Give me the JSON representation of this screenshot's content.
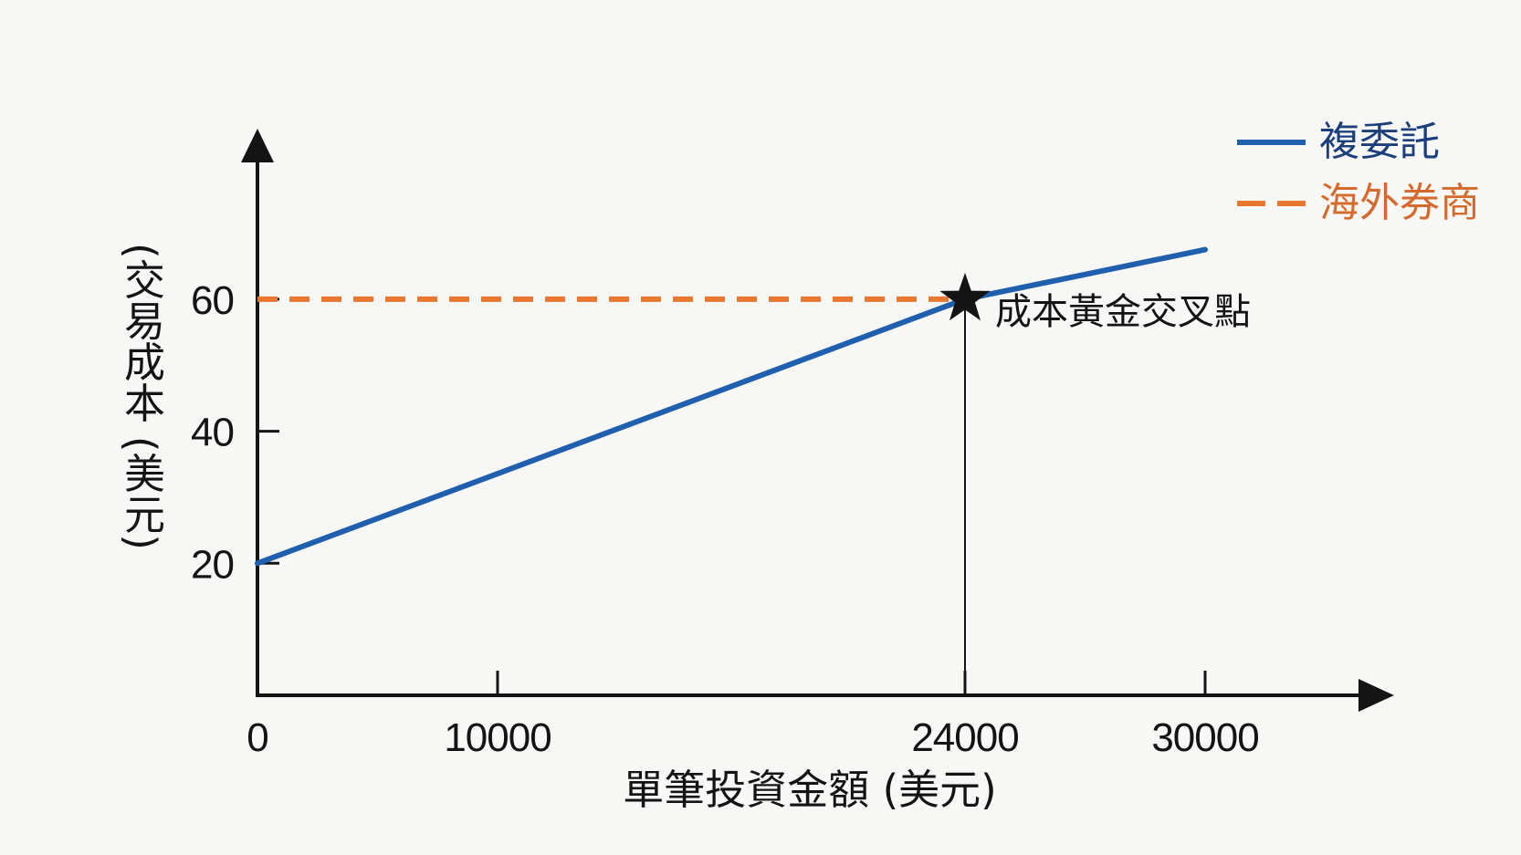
{
  "chart_data": {
    "type": "line",
    "xlabel": "單筆投資金額 (美元)",
    "ylabel": "(交易成本 (美元)",
    "x_ticks": [
      0,
      10000,
      24000,
      30000
    ],
    "y_ticks": [
      20,
      40,
      60
    ],
    "ylim": [
      0,
      85
    ],
    "grid": false,
    "legend": {
      "position": "top-right"
    },
    "series": [
      {
        "name": "複委託",
        "line_style": "solid",
        "color": "#1f5fae",
        "label_color": "#1c3f7c",
        "points": [
          [
            0,
            20
          ],
          [
            24000,
            60
          ],
          [
            30000,
            67.5
          ]
        ]
      },
      {
        "name": "海外券商",
        "line_style": "dashed",
        "color": "#e8782f",
        "label_color": "#d6692c",
        "points": [
          [
            0,
            60
          ],
          [
            24000,
            60
          ]
        ]
      }
    ],
    "annotations": [
      {
        "text": "成本黃金交叉點",
        "x": 24000,
        "y": 60,
        "marker": "star",
        "drop_line_to_x_axis": true
      }
    ]
  },
  "colors": {
    "background": "#f7f7f6",
    "axis": "#141414"
  }
}
